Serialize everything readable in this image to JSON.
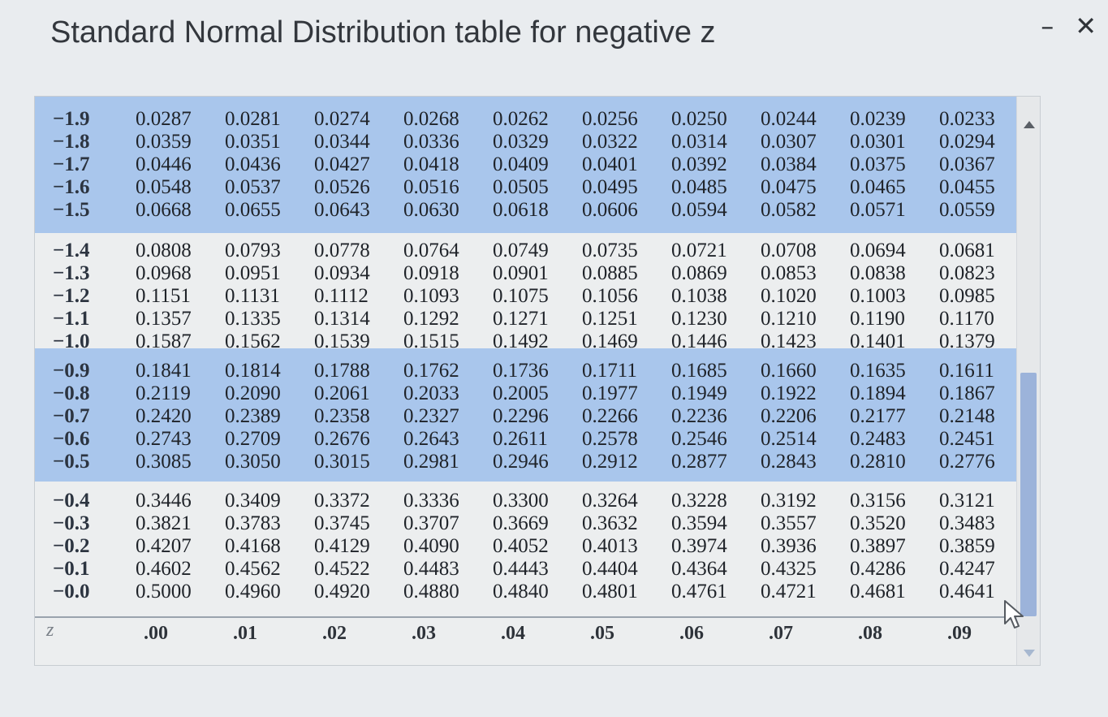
{
  "window": {
    "title": "Standard Normal Distribution table for negative z",
    "minimize_label": "–",
    "close_label": "✕"
  },
  "colors": {
    "highlight": "#a9c6ec",
    "background": "#eceeef",
    "scroll_thumb": "#9cb3da"
  },
  "table": {
    "column_headers": [
      ".00",
      ".01",
      ".02",
      ".03",
      ".04",
      ".05",
      ".06",
      ".07",
      ".08",
      ".09"
    ],
    "z_header": "z",
    "rows": [
      {
        "z": "−1.9",
        "values": [
          "0.0287",
          "0.0281",
          "0.0274",
          "0.0268",
          "0.0262",
          "0.0256",
          "0.0250",
          "0.0244",
          "0.0239",
          "0.0233"
        ]
      },
      {
        "z": "−1.8",
        "values": [
          "0.0359",
          "0.0351",
          "0.0344",
          "0.0336",
          "0.0329",
          "0.0322",
          "0.0314",
          "0.0307",
          "0.0301",
          "0.0294"
        ]
      },
      {
        "z": "−1.7",
        "values": [
          "0.0446",
          "0.0436",
          "0.0427",
          "0.0418",
          "0.0409",
          "0.0401",
          "0.0392",
          "0.0384",
          "0.0375",
          "0.0367"
        ]
      },
      {
        "z": "−1.6",
        "values": [
          "0.0548",
          "0.0537",
          "0.0526",
          "0.0516",
          "0.0505",
          "0.0495",
          "0.0485",
          "0.0475",
          "0.0465",
          "0.0455"
        ]
      },
      {
        "z": "−1.5",
        "values": [
          "0.0668",
          "0.0655",
          "0.0643",
          "0.0630",
          "0.0618",
          "0.0606",
          "0.0594",
          "0.0582",
          "0.0571",
          "0.0559"
        ]
      },
      {
        "z": "−1.4",
        "values": [
          "0.0808",
          "0.0793",
          "0.0778",
          "0.0764",
          "0.0749",
          "0.0735",
          "0.0721",
          "0.0708",
          "0.0694",
          "0.0681"
        ]
      },
      {
        "z": "−1.3",
        "values": [
          "0.0968",
          "0.0951",
          "0.0934",
          "0.0918",
          "0.0901",
          "0.0885",
          "0.0869",
          "0.0853",
          "0.0838",
          "0.0823"
        ]
      },
      {
        "z": "−1.2",
        "values": [
          "0.1151",
          "0.1131",
          "0.1112",
          "0.1093",
          "0.1075",
          "0.1056",
          "0.1038",
          "0.1020",
          "0.1003",
          "0.0985"
        ]
      },
      {
        "z": "−1.1",
        "values": [
          "0.1357",
          "0.1335",
          "0.1314",
          "0.1292",
          "0.1271",
          "0.1251",
          "0.1230",
          "0.1210",
          "0.1190",
          "0.1170"
        ]
      },
      {
        "z": "−1.0",
        "values": [
          "0.1587",
          "0.1562",
          "0.1539",
          "0.1515",
          "0.1492",
          "0.1469",
          "0.1446",
          "0.1423",
          "0.1401",
          "0.1379"
        ]
      },
      {
        "z": "−0.9",
        "values": [
          "0.1841",
          "0.1814",
          "0.1788",
          "0.1762",
          "0.1736",
          "0.1711",
          "0.1685",
          "0.1660",
          "0.1635",
          "0.1611"
        ]
      },
      {
        "z": "−0.8",
        "values": [
          "0.2119",
          "0.2090",
          "0.2061",
          "0.2033",
          "0.2005",
          "0.1977",
          "0.1949",
          "0.1922",
          "0.1894",
          "0.1867"
        ]
      },
      {
        "z": "−0.7",
        "values": [
          "0.2420",
          "0.2389",
          "0.2358",
          "0.2327",
          "0.2296",
          "0.2266",
          "0.2236",
          "0.2206",
          "0.2177",
          "0.2148"
        ]
      },
      {
        "z": "−0.6",
        "values": [
          "0.2743",
          "0.2709",
          "0.2676",
          "0.2643",
          "0.2611",
          "0.2578",
          "0.2546",
          "0.2514",
          "0.2483",
          "0.2451"
        ]
      },
      {
        "z": "−0.5",
        "values": [
          "0.3085",
          "0.3050",
          "0.3015",
          "0.2981",
          "0.2946",
          "0.2912",
          "0.2877",
          "0.2843",
          "0.2810",
          "0.2776"
        ]
      },
      {
        "z": "−0.4",
        "values": [
          "0.3446",
          "0.3409",
          "0.3372",
          "0.3336",
          "0.3300",
          "0.3264",
          "0.3228",
          "0.3192",
          "0.3156",
          "0.3121"
        ]
      },
      {
        "z": "−0.3",
        "values": [
          "0.3821",
          "0.3783",
          "0.3745",
          "0.3707",
          "0.3669",
          "0.3632",
          "0.3594",
          "0.3557",
          "0.3520",
          "0.3483"
        ]
      },
      {
        "z": "−0.2",
        "values": [
          "0.4207",
          "0.4168",
          "0.4129",
          "0.4090",
          "0.4052",
          "0.4013",
          "0.3974",
          "0.3936",
          "0.3897",
          "0.3859"
        ]
      },
      {
        "z": "−0.1",
        "values": [
          "0.4602",
          "0.4562",
          "0.4522",
          "0.4483",
          "0.4443",
          "0.4404",
          "0.4364",
          "0.4325",
          "0.4286",
          "0.4247"
        ]
      },
      {
        "z": "−0.0",
        "values": [
          "0.5000",
          "0.4960",
          "0.4920",
          "0.4880",
          "0.4840",
          "0.4801",
          "0.4761",
          "0.4721",
          "0.4681",
          "0.4641"
        ]
      }
    ]
  }
}
